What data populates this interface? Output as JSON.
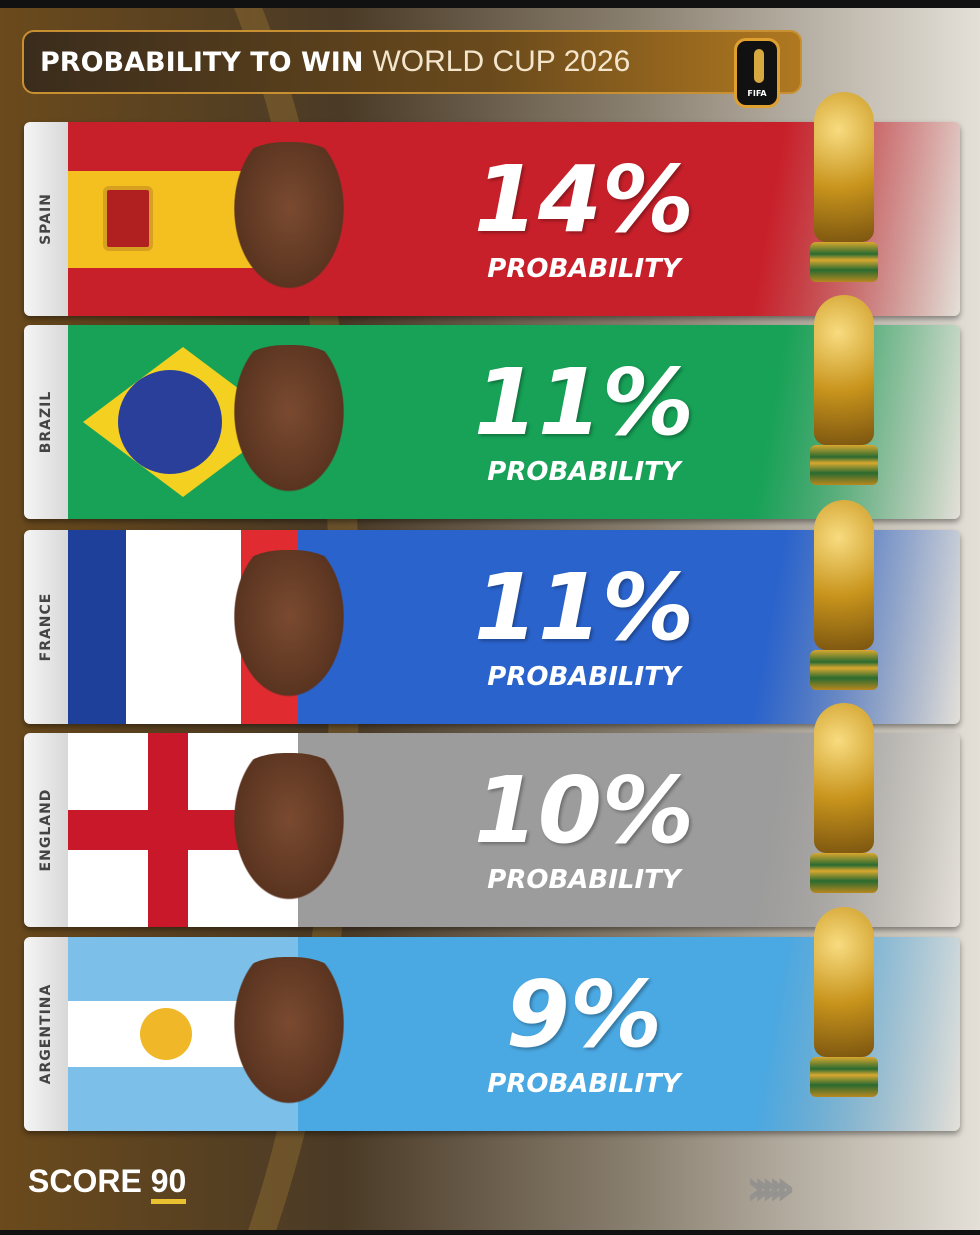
{
  "header": {
    "title_bold": "PROBABILITY TO WIN",
    "title_light": "WORLD CUP 2026",
    "badge": "FIFA"
  },
  "colors": {
    "Spain": "#c8202a",
    "Brazil": "#17a257",
    "France": "#2a63cc",
    "England": "#9c9c9c",
    "Argentina": "#4aa8e2",
    "gold": "#c8941c"
  },
  "chart_data": {
    "type": "bar",
    "title": "PROBABILITY TO WIN WORLD CUP 2026",
    "categories": [
      "SPAIN",
      "BRAZIL",
      "FRANCE",
      "ENGLAND",
      "ARGENTINA"
    ],
    "values": [
      14,
      11,
      11,
      10,
      9
    ],
    "value_labels": [
      "14%",
      "11%",
      "11%",
      "10%",
      "9%"
    ],
    "sublabel": "PROBABILITY",
    "unit": "%"
  },
  "footer": {
    "brand": "SCORE",
    "brand_num": "90",
    "chevrons": "›››››"
  }
}
